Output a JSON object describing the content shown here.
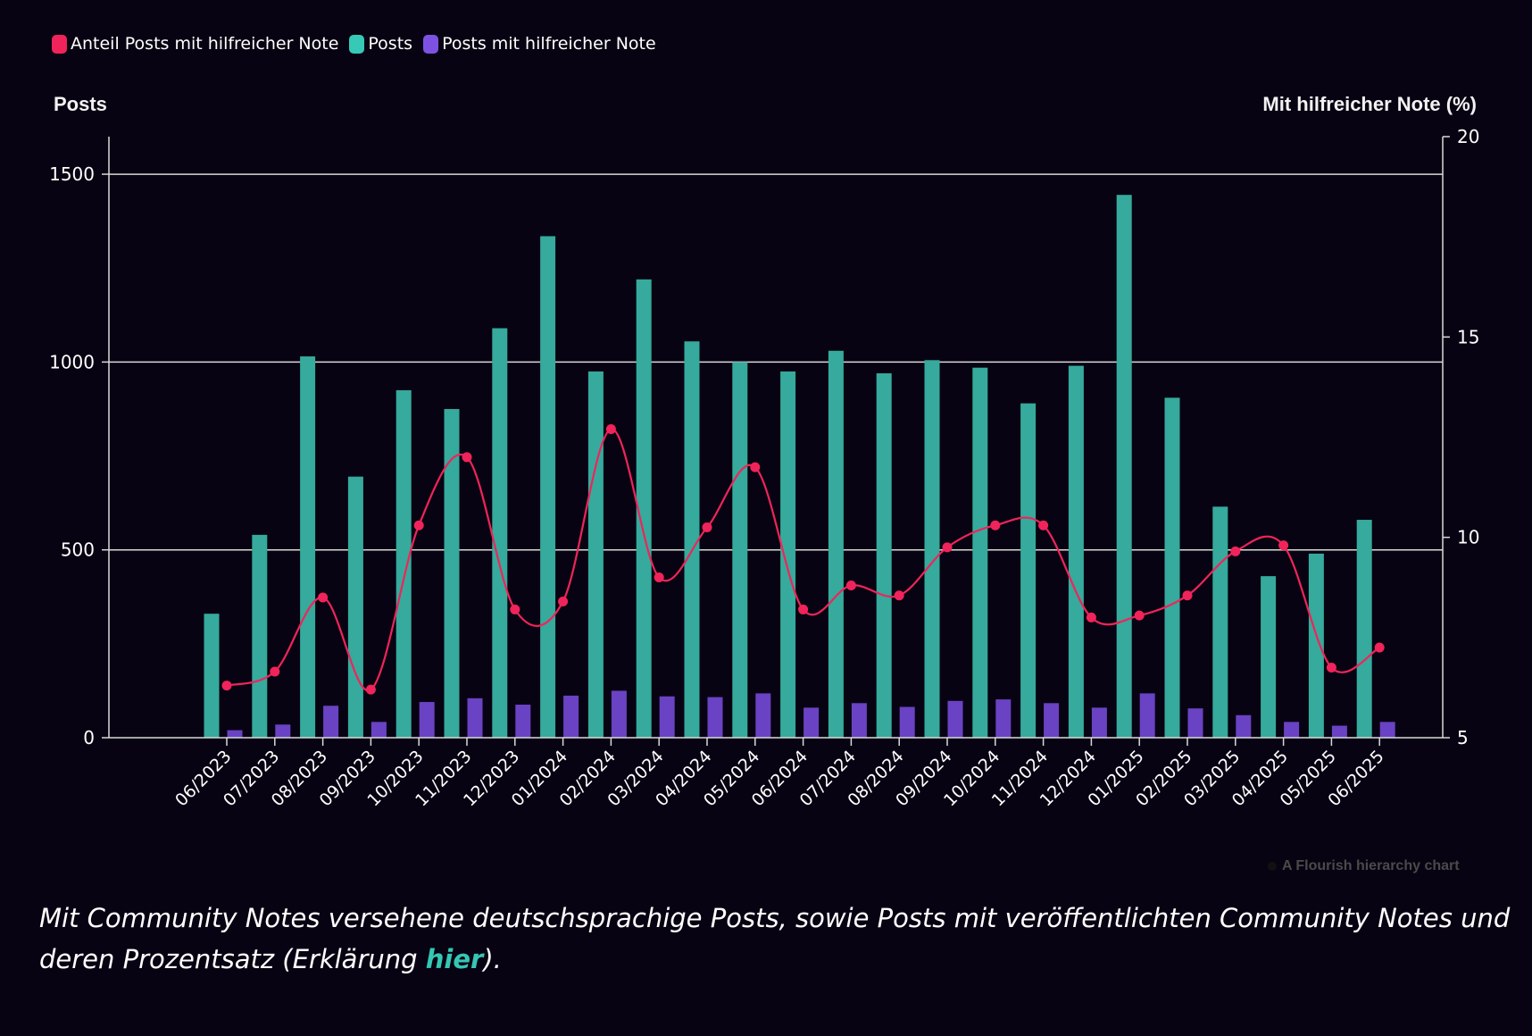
{
  "legend": [
    {
      "label": "Anteil Posts mit hilfreicher Note",
      "color": "#f0245a"
    },
    {
      "label": "Posts",
      "color": "#36c9b6"
    },
    {
      "label": "Posts mit hilfreicher Note",
      "color": "#7d52e3"
    }
  ],
  "axes": {
    "left_title": "Posts",
    "right_title": "Mit hilfreicher Note (%)"
  },
  "credit": "A Flourish hierarchy chart",
  "caption": {
    "text_before": "Mit Community Notes versehene deutschsprachige Posts, sowie Posts mit veröffentlichten Community Notes und deren Prozentsatz (Erklärung ",
    "link_text": "hier",
    "text_after": ")."
  },
  "colors": {
    "background": "#080312",
    "posts": "#36aa9c",
    "helpful": "#6a42c4",
    "line": "#f0245a",
    "grid": "#d9d9d9"
  },
  "chart_data": {
    "type": "bar",
    "categories": [
      "06/2023",
      "07/2023",
      "08/2023",
      "09/2023",
      "10/2023",
      "11/2023",
      "12/2023",
      "01/2024",
      "02/2024",
      "03/2024",
      "04/2024",
      "05/2024",
      "06/2024",
      "07/2024",
      "08/2024",
      "09/2024",
      "10/2024",
      "11/2024",
      "12/2024",
      "01/2025",
      "02/2025",
      "03/2025",
      "04/2025",
      "05/2025",
      "06/2025"
    ],
    "series": [
      {
        "name": "Posts",
        "type": "bar",
        "axis": "left",
        "values": [
          330,
          540,
          1015,
          695,
          925,
          875,
          1090,
          1335,
          975,
          1220,
          1055,
          1000,
          975,
          1030,
          970,
          1005,
          985,
          890,
          990,
          1445,
          905,
          615,
          430,
          490,
          580
        ]
      },
      {
        "name": "Posts mit hilfreicher Note",
        "type": "bar",
        "axis": "left",
        "values": [
          20,
          35,
          85,
          42,
          95,
          105,
          88,
          112,
          125,
          110,
          108,
          118,
          80,
          92,
          82,
          98,
          102,
          92,
          80,
          118,
          78,
          60,
          42,
          32,
          42
        ]
      },
      {
        "name": "Anteil Posts mit hilfreicher Note",
        "type": "line",
        "axis": "right",
        "values": [
          6.3,
          6.65,
          8.5,
          6.2,
          10.3,
          12.0,
          8.2,
          8.4,
          12.7,
          9.0,
          10.25,
          11.75,
          8.2,
          8.8,
          8.55,
          9.75,
          10.3,
          10.3,
          8.0,
          8.05,
          8.55,
          9.65,
          9.8,
          6.75,
          7.25
        ]
      }
    ],
    "xlabel": "",
    "ylabel": "Posts",
    "ylabel_right": "Mit hilfreicher Note (%)",
    "ylim": [
      0,
      1600
    ],
    "ylim_right": [
      5,
      20
    ],
    "yticks": [
      0,
      500,
      1000,
      1500
    ],
    "yticks_right": [
      5,
      10,
      15,
      20
    ],
    "grid": true,
    "legend_position": "top-left"
  }
}
